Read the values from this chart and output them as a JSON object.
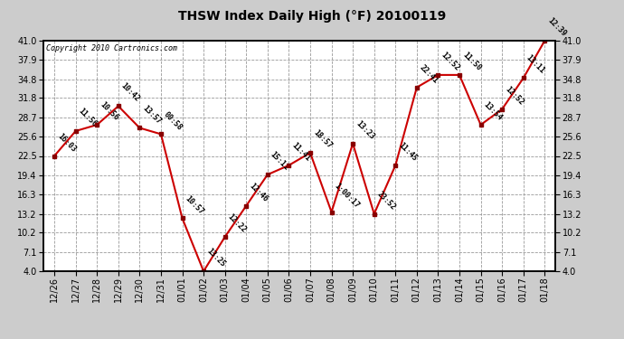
{
  "title": "THSW Index Daily High (°F) 20100119",
  "copyright": "Copyright 2010 Cartronics.com",
  "x_labels": [
    "12/26",
    "12/27",
    "12/28",
    "12/29",
    "12/30",
    "12/31",
    "01/01",
    "01/02",
    "01/03",
    "01/04",
    "01/05",
    "01/06",
    "01/07",
    "01/08",
    "01/09",
    "01/10",
    "01/11",
    "01/12",
    "01/13",
    "01/14",
    "01/15",
    "01/16",
    "01/17",
    "01/18"
  ],
  "y_values": [
    22.5,
    26.5,
    27.5,
    30.5,
    27.0,
    26.0,
    12.5,
    4.0,
    9.5,
    14.5,
    19.5,
    21.0,
    23.0,
    13.5,
    24.5,
    13.2,
    21.0,
    33.5,
    35.5,
    35.5,
    27.5,
    30.0,
    35.0,
    41.0
  ],
  "time_labels": [
    "16:03",
    "11:56",
    "10:56",
    "10:42",
    "13:57",
    "00:58",
    "10:57",
    "13:25",
    "12:22",
    "12:46",
    "15:11",
    "11:41",
    "18:57",
    "1:00:17",
    "13:23",
    "23:52",
    "11:45",
    "22:41",
    "12:52",
    "11:50",
    "13:54",
    "12:52",
    "13:11",
    "12:39"
  ],
  "y_ticks": [
    4.0,
    7.1,
    10.2,
    13.2,
    16.3,
    19.4,
    22.5,
    25.6,
    28.7,
    31.8,
    34.8,
    37.9,
    41.0
  ],
  "y_min": 4.0,
  "y_max": 41.0,
  "line_color": "#cc0000",
  "marker_color": "#880000",
  "bg_color": "#cccccc",
  "plot_bg_color": "#ffffff",
  "grid_color": "#999999",
  "title_fontsize": 10,
  "label_fontsize": 6,
  "tick_fontsize": 7,
  "copyright_fontsize": 6
}
